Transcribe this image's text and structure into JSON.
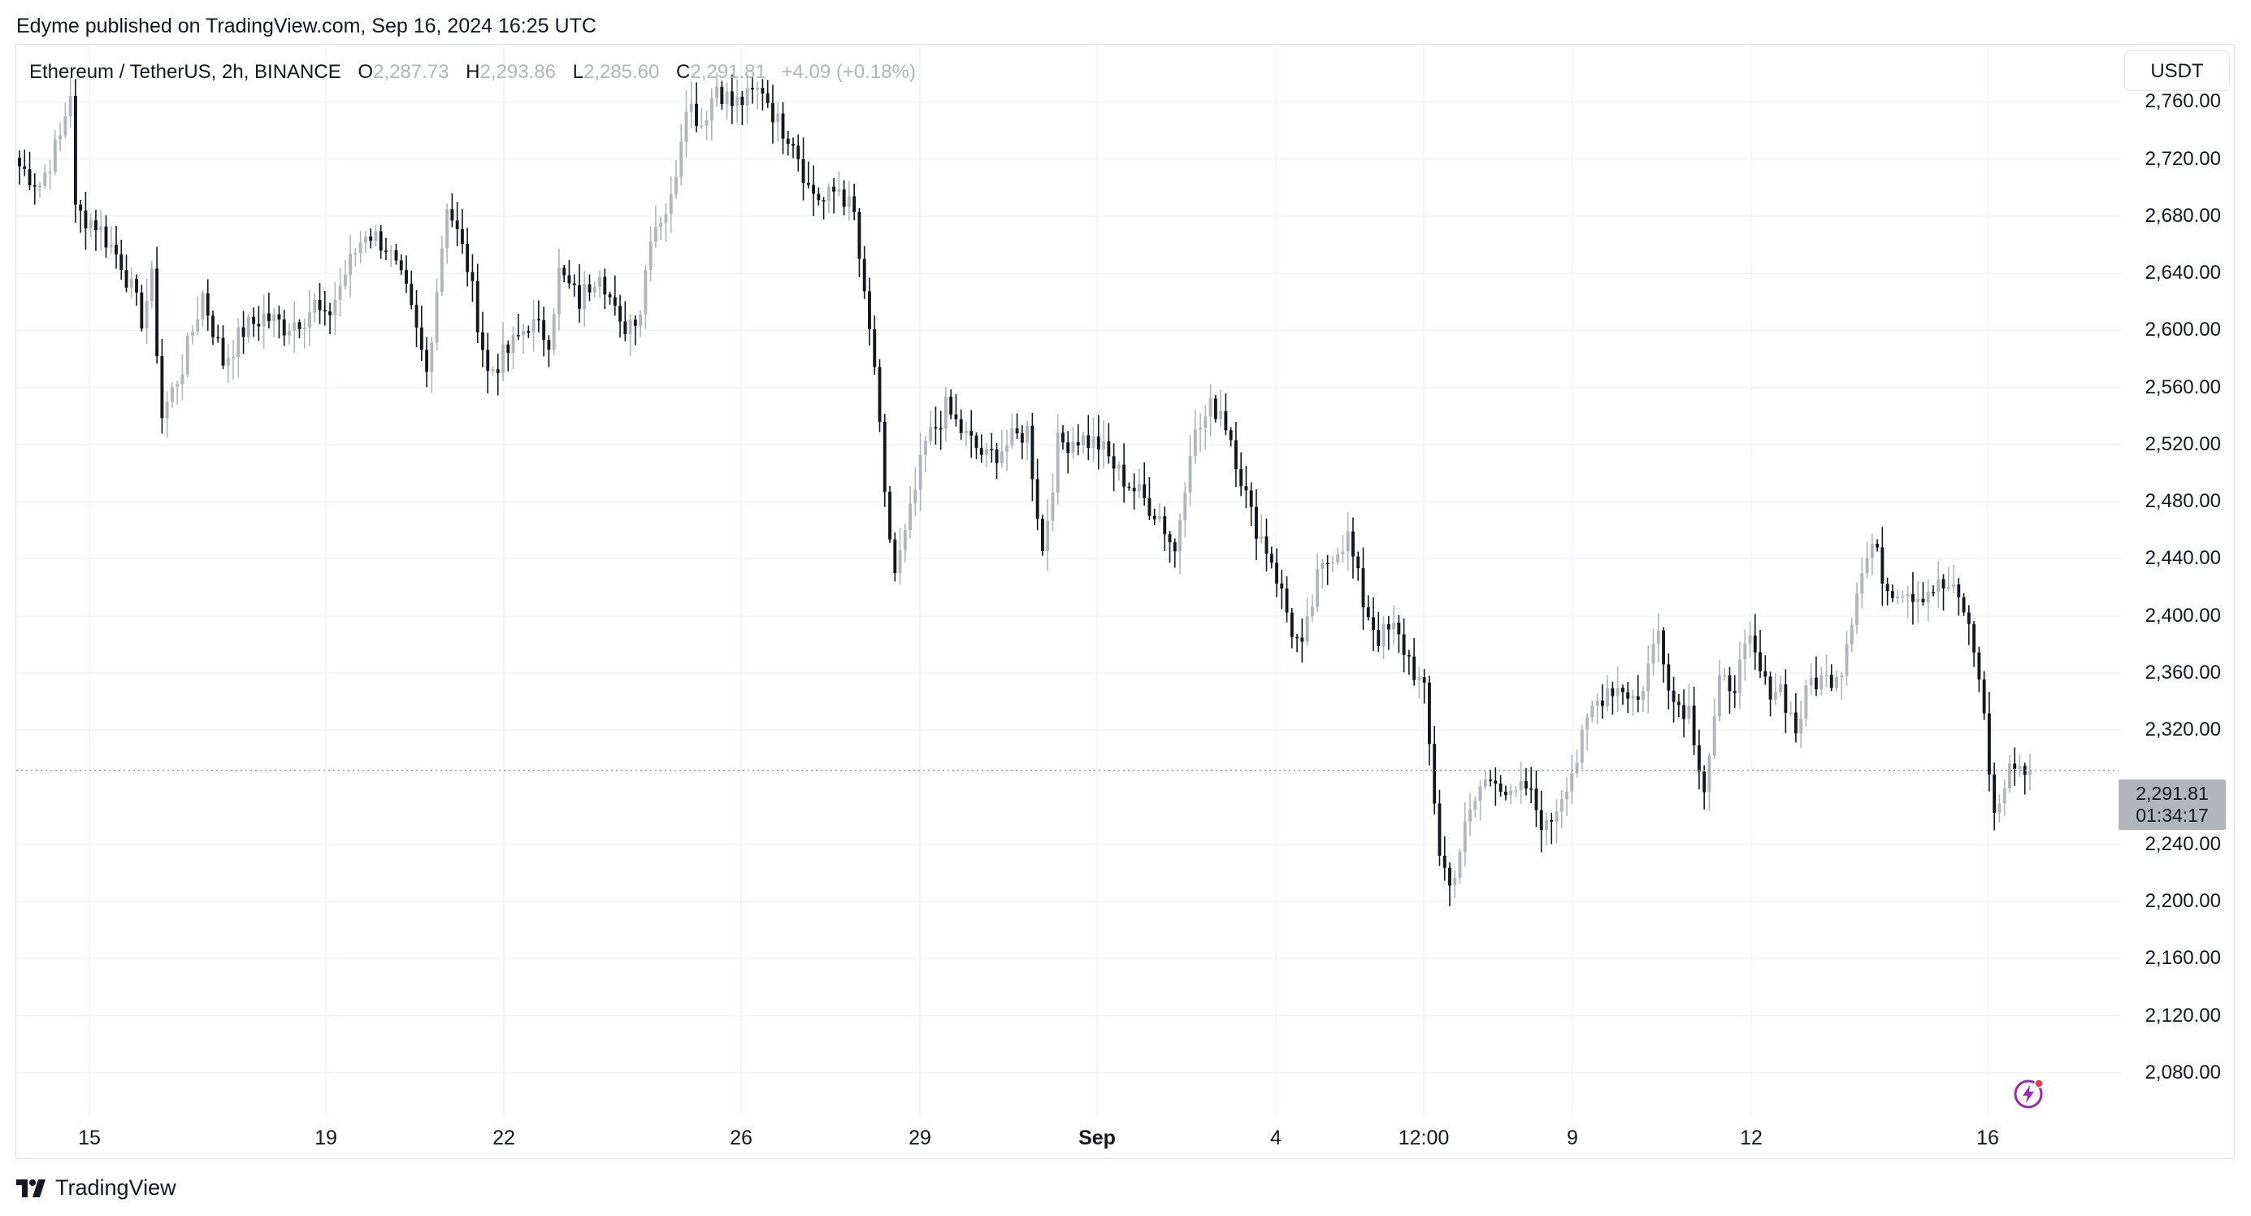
{
  "header": {
    "published": "Edyme published on TradingView.com, Sep 16, 2024 16:25 UTC"
  },
  "legend": {
    "symbol": "Ethereum / TetherUS, 2h, BINANCE",
    "open_label": "O",
    "open_value": "2,287.73",
    "high_label": "H",
    "high_value": "2,293.86",
    "low_label": "L",
    "low_value": "2,285.60",
    "close_label": "C",
    "close_value": "2,291.81",
    "change": "+4.09 (+0.18%)"
  },
  "toolbar": {
    "unit_label": "USDT"
  },
  "price_tag": {
    "price": "2,291.81",
    "countdown": "01:34:17"
  },
  "footer": {
    "brand": "TradingView"
  },
  "icons": {
    "logo": "tradingview-logo-icon",
    "bolt": "lightning-bolt-icon"
  },
  "colors": {
    "up": "#b2b5be",
    "down": "#131722",
    "grid": "#f0f3fa",
    "accent_bolt": "#9c27b0",
    "dot": "#f23645"
  },
  "chart_data": {
    "type": "candlestick",
    "interval": "2h",
    "ylim": [
      2060,
      2800
    ],
    "y_ticks": [
      "2,760.00",
      "2,720.00",
      "2,680.00",
      "2,640.00",
      "2,600.00",
      "2,560.00",
      "2,520.00",
      "2,480.00",
      "2,440.00",
      "2,400.00",
      "2,360.00",
      "2,320.00",
      "2,240.00",
      "2,200.00",
      "2,160.00",
      "2,120.00",
      "2,080.00"
    ],
    "x_ticks": [
      {
        "label": "15",
        "bold": false
      },
      {
        "label": "19",
        "bold": false
      },
      {
        "label": "22",
        "bold": false
      },
      {
        "label": "26",
        "bold": false
      },
      {
        "label": "29",
        "bold": false
      },
      {
        "label": "Sep",
        "bold": true
      },
      {
        "label": "4",
        "bold": false
      },
      {
        "label": "12:00",
        "bold": false
      },
      {
        "label": "9",
        "bold": false
      },
      {
        "label": "12",
        "bold": false
      },
      {
        "label": "16",
        "bold": false
      }
    ],
    "last_price": 2291.81,
    "anchors": [
      [
        0,
        2715
      ],
      [
        4,
        2702
      ],
      [
        8,
        2735
      ],
      [
        10,
        2768
      ],
      [
        11,
        2683
      ],
      [
        15,
        2675
      ],
      [
        20,
        2648
      ],
      [
        24,
        2608
      ],
      [
        26,
        2635
      ],
      [
        28,
        2540
      ],
      [
        32,
        2575
      ],
      [
        36,
        2625
      ],
      [
        40,
        2578
      ],
      [
        44,
        2600
      ],
      [
        48,
        2610
      ],
      [
        52,
        2603
      ],
      [
        56,
        2610
      ],
      [
        58,
        2618
      ],
      [
        60,
        2605
      ],
      [
        64,
        2640
      ],
      [
        68,
        2670
      ],
      [
        72,
        2660
      ],
      [
        76,
        2625
      ],
      [
        80,
        2570
      ],
      [
        84,
        2690
      ],
      [
        88,
        2645
      ],
      [
        92,
        2570
      ],
      [
        96,
        2585
      ],
      [
        100,
        2605
      ],
      [
        104,
        2595
      ],
      [
        106,
        2640
      ],
      [
        110,
        2620
      ],
      [
        114,
        2645
      ],
      [
        118,
        2600
      ],
      [
        122,
        2615
      ],
      [
        124,
        2670
      ],
      [
        128,
        2690
      ],
      [
        131,
        2762
      ],
      [
        134,
        2745
      ],
      [
        137,
        2772
      ],
      [
        140,
        2758
      ],
      [
        143,
        2762
      ],
      [
        146,
        2770
      ],
      [
        149,
        2745
      ],
      [
        152,
        2735
      ],
      [
        155,
        2700
      ],
      [
        158,
        2690
      ],
      [
        161,
        2700
      ],
      [
        164,
        2680
      ],
      [
        166,
        2620
      ],
      [
        168,
        2575
      ],
      [
        170,
        2480
      ],
      [
        172,
        2430
      ],
      [
        174,
        2455
      ],
      [
        178,
        2520
      ],
      [
        182,
        2545
      ],
      [
        186,
        2525
      ],
      [
        190,
        2510
      ],
      [
        194,
        2520
      ],
      [
        198,
        2530
      ],
      [
        201,
        2445
      ],
      [
        204,
        2520
      ],
      [
        208,
        2525
      ],
      [
        212,
        2520
      ],
      [
        216,
        2500
      ],
      [
        220,
        2485
      ],
      [
        224,
        2470
      ],
      [
        227,
        2445
      ],
      [
        230,
        2520
      ],
      [
        234,
        2545
      ],
      [
        236,
        2545
      ],
      [
        238,
        2525
      ],
      [
        242,
        2470
      ],
      [
        246,
        2440
      ],
      [
        250,
        2390
      ],
      [
        252,
        2375
      ],
      [
        255,
        2425
      ],
      [
        258,
        2445
      ],
      [
        261,
        2455
      ],
      [
        264,
        2410
      ],
      [
        267,
        2385
      ],
      [
        270,
        2390
      ],
      [
        273,
        2370
      ],
      [
        276,
        2345
      ],
      [
        279,
        2235
      ],
      [
        281,
        2210
      ],
      [
        284,
        2250
      ],
      [
        287,
        2280
      ],
      [
        290,
        2290
      ],
      [
        293,
        2270
      ],
      [
        296,
        2280
      ],
      [
        300,
        2250
      ],
      [
        304,
        2285
      ],
      [
        306,
        2300
      ],
      [
        309,
        2335
      ],
      [
        312,
        2350
      ],
      [
        315,
        2350
      ],
      [
        318,
        2340
      ],
      [
        322,
        2390
      ],
      [
        325,
        2340
      ],
      [
        328,
        2335
      ],
      [
        331,
        2280
      ],
      [
        334,
        2350
      ],
      [
        337,
        2355
      ],
      [
        340,
        2380
      ],
      [
        343,
        2350
      ],
      [
        346,
        2350
      ],
      [
        349,
        2320
      ],
      [
        352,
        2355
      ],
      [
        355,
        2355
      ],
      [
        358,
        2365
      ],
      [
        361,
        2420
      ],
      [
        364,
        2450
      ],
      [
        367,
        2420
      ],
      [
        370,
        2420
      ],
      [
        373,
        2415
      ],
      [
        376,
        2420
      ],
      [
        379,
        2420
      ],
      [
        382,
        2405
      ],
      [
        385,
        2360
      ],
      [
        388,
        2260
      ],
      [
        390,
        2280
      ],
      [
        392,
        2300
      ],
      [
        394,
        2290
      ],
      [
        395,
        2292
      ]
    ]
  }
}
